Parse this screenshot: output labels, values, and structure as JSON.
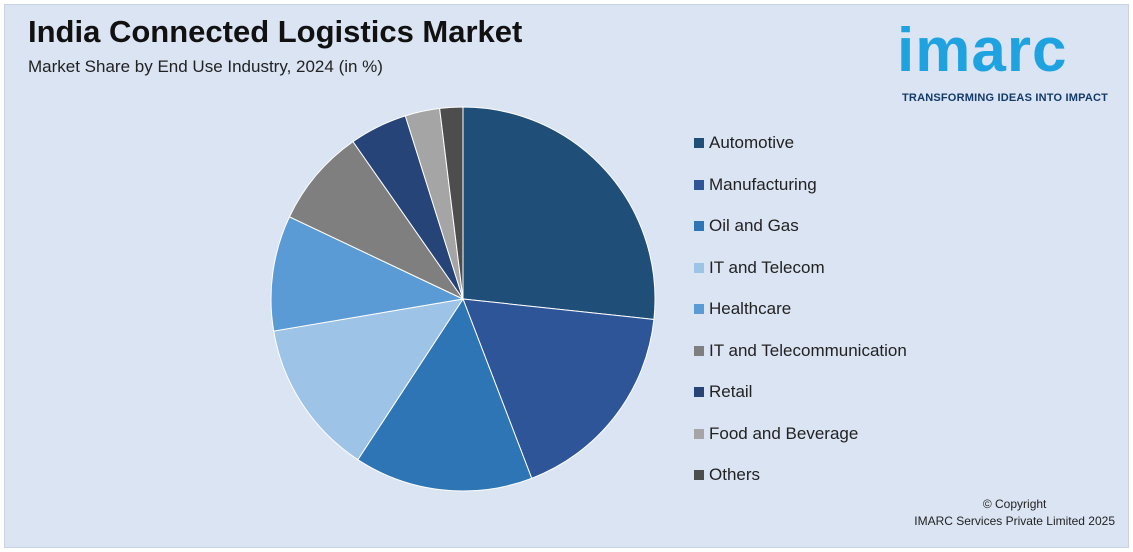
{
  "header": {
    "title": "India Connected Logistics Market",
    "subtitle": "Market Share by End Use Industry, 2024 (in %)"
  },
  "logo": {
    "word": "imarc",
    "tagline": "TRANSFORMING IDEAS INTO IMPACT"
  },
  "chart_data": {
    "type": "pie",
    "title": "India Connected Logistics Market",
    "subtitle": "Market Share by End Use Industry, 2024 (in %)",
    "categories": [
      "Automotive",
      "Manufacturing",
      "Oil and Gas",
      "IT and Telecom",
      "Healthcare",
      "IT and Telecommunication",
      "Retail",
      "Food and Beverage",
      "Others"
    ],
    "values": [
      27.5,
      18,
      15.5,
      13.5,
      10,
      8.5,
      5,
      3,
      2
    ],
    "colors": [
      "#1f4e79",
      "#2e5597",
      "#2e75b6",
      "#9dc3e6",
      "#5b9bd5",
      "#7f7f7f",
      "#264478",
      "#a5a5a5",
      "#4d4d4d"
    ],
    "legend_position": "right",
    "start_angle": "12 o'clock, clockwise"
  },
  "footer": {
    "copyright_line1": "© Copyright",
    "copyright_line2": "IMARC Services Private Limited 2025"
  }
}
